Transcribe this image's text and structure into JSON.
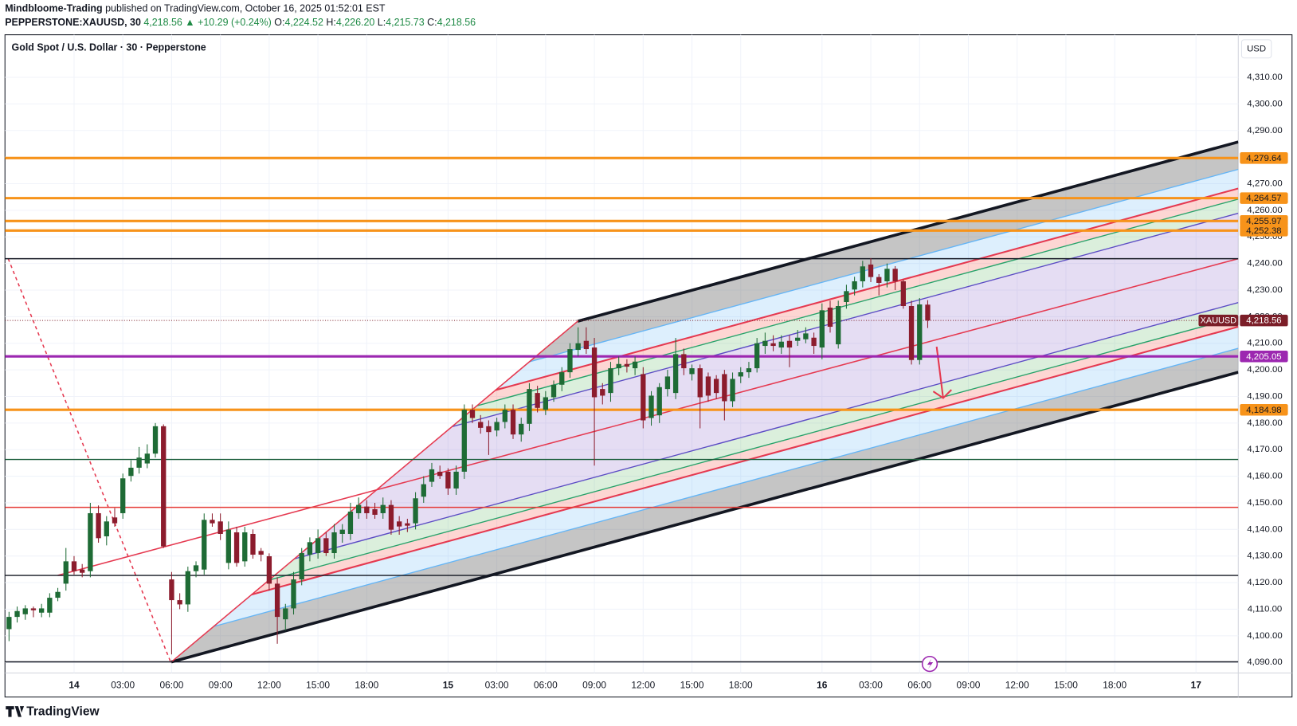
{
  "header": {
    "author": "Mindbloome-Trading",
    "published": "published on TradingView.com, October 16, 2025 01:52:01 EST",
    "symbol": "PEPPERSTONE:XAUUSD, 30",
    "last": "4,218.56",
    "change": "▲ +10.29 (+0.24%)",
    "ohlc": [
      {
        "key": "O:",
        "value": "4,224.52"
      },
      {
        "key": "H:",
        "value": "4,226.20"
      },
      {
        "key": "L:",
        "value": "4,215.73"
      },
      {
        "key": "C:",
        "value": "4,218.56"
      }
    ]
  },
  "logo": "TradingView",
  "chart_data": {
    "type": "candlestick",
    "title": "Gold Spot / U.S. Dollar · 30 · Pepperstone",
    "currency": "USD",
    "up_color": "#1e6b35",
    "down_color": "#8c1c2d",
    "candles": [
      [
        4102.5,
        4109,
        4098,
        4107.1
      ],
      [
        4107.1,
        4111,
        4105,
        4109.3
      ],
      [
        4108.1,
        4111.5,
        4106,
        4110.3
      ],
      [
        4110.3,
        4111,
        4107,
        4109.6
      ],
      [
        4108.7,
        4112,
        4107,
        4110.3
      ],
      [
        4108.7,
        4116,
        4107,
        4114.3
      ],
      [
        4114.3,
        4118,
        4113,
        4116.5
      ],
      [
        4119.6,
        4133,
        4117,
        4128.0
      ],
      [
        4128.0,
        4130,
        4123,
        4124.3
      ],
      [
        4124.9,
        4127,
        4122,
        4123.7
      ],
      [
        4124.3,
        4150,
        4122,
        4146.1
      ],
      [
        4146.1,
        4149,
        4135,
        4136.7
      ],
      [
        4137.4,
        4145,
        4134,
        4143.0
      ],
      [
        4144.5,
        4148,
        4141,
        4142.3
      ],
      [
        4146.1,
        4161,
        4144,
        4159.2
      ],
      [
        4160.1,
        4166,
        4158,
        4163.2
      ],
      [
        4163.2,
        4171,
        4161,
        4167.0
      ],
      [
        4164.8,
        4172,
        4163,
        4168.5
      ],
      [
        4168.5,
        4180,
        4167,
        4178.8
      ],
      [
        4178.8,
        4179.5,
        4133,
        4133.6
      ],
      [
        4121.2,
        4124,
        4093,
        4113.4
      ],
      [
        4113.4,
        4116,
        4110,
        4111.8
      ],
      [
        4111.8,
        4126,
        4109,
        4124.3
      ],
      [
        4124.3,
        4128,
        4122,
        4126.5
      ],
      [
        4124.9,
        4146,
        4123,
        4143.6
      ],
      [
        4143.6,
        4146,
        4141,
        4142.3
      ],
      [
        4143,
        4146,
        4136,
        4138.3
      ],
      [
        4127.4,
        4143,
        4125,
        4139.9
      ],
      [
        4138.9,
        4141,
        4126,
        4127.4
      ],
      [
        4128.0,
        4141,
        4126,
        4138.9
      ],
      [
        4138.3,
        4140,
        4129,
        4130.5
      ],
      [
        4131.9,
        4133,
        4128,
        4130.5
      ],
      [
        4129.9,
        4131,
        4117,
        4119.6
      ],
      [
        4119.6,
        4122,
        4097,
        4107.1
      ],
      [
        4106.2,
        4112,
        4102,
        4110.3
      ],
      [
        4110.3,
        4124,
        4108,
        4121.2
      ],
      [
        4121.2,
        4133,
        4119,
        4131.1
      ],
      [
        4130.5,
        4137,
        4128,
        4135.2
      ],
      [
        4131.1,
        4140,
        4129,
        4136.7
      ],
      [
        4136.7,
        4139,
        4130,
        4131.1
      ],
      [
        4131.1,
        4142,
        4129,
        4138.9
      ],
      [
        4138.3,
        4142,
        4135,
        4139.9
      ],
      [
        4138.3,
        4150,
        4136,
        4146.7
      ],
      [
        4146.1,
        4152,
        4144,
        4149.2
      ],
      [
        4148.6,
        4151,
        4144,
        4146.1
      ],
      [
        4147.6,
        4150,
        4144,
        4145.5
      ],
      [
        4146.1,
        4152,
        4144,
        4149.2
      ],
      [
        4149.2,
        4151,
        4138,
        4139.9
      ],
      [
        4143.0,
        4145,
        4138,
        4141.1
      ],
      [
        4142.3,
        4144,
        4139,
        4141.4
      ],
      [
        4142.3,
        4154,
        4140,
        4151.7
      ],
      [
        4152.3,
        4160,
        4150,
        4157.0
      ],
      [
        4157.9,
        4165,
        4156,
        4162.6
      ],
      [
        4161.7,
        4164,
        4159,
        4160.1
      ],
      [
        4161.7,
        4163,
        4153,
        4155.4
      ],
      [
        4155.4,
        4164,
        4153,
        4161.7
      ],
      [
        4161.7,
        4187,
        4159,
        4185.0
      ],
      [
        4185.0,
        4187,
        4180,
        4181.9
      ],
      [
        4180.4,
        4183,
        4176,
        4178.2
      ],
      [
        4178.8,
        4181,
        4168,
        4176.6
      ],
      [
        4177.2,
        4182,
        4175,
        4180.4
      ],
      [
        4180.4,
        4187,
        4178,
        4185.0
      ],
      [
        4185.0,
        4187,
        4174,
        4175.7
      ],
      [
        4175.7,
        4182,
        4173,
        4179.7
      ],
      [
        4179.7,
        4195,
        4177,
        4192.8
      ],
      [
        4191.3,
        4194,
        4184,
        4185.7
      ],
      [
        4185.0,
        4192,
        4183,
        4189.7
      ],
      [
        4189.7,
        4196,
        4188,
        4194.4
      ],
      [
        4194.4,
        4201,
        4192,
        4199.1
      ],
      [
        4199.1,
        4210,
        4197,
        4207.8
      ],
      [
        4207.5,
        4216,
        4205,
        4210.0
      ],
      [
        4210.9,
        4216,
        4206,
        4207.8
      ],
      [
        4208.4,
        4212,
        4164,
        4189.7
      ],
      [
        4192.8,
        4195,
        4187,
        4190.3
      ],
      [
        4191.3,
        4203,
        4188,
        4200.6
      ],
      [
        4200.6,
        4205,
        4198,
        4202.2
      ],
      [
        4202.2,
        4204,
        4199,
        4201.2
      ],
      [
        4200.6,
        4205,
        4198,
        4203.1
      ],
      [
        4198.4,
        4201,
        4178,
        4181.0
      ],
      [
        4181.9,
        4192,
        4179,
        4190.3
      ],
      [
        4182.9,
        4195,
        4180,
        4193.5
      ],
      [
        4192.8,
        4200,
        4190,
        4197.5
      ],
      [
        4191.3,
        4212,
        4189,
        4205.9
      ],
      [
        4205.9,
        4208,
        4198,
        4200.6
      ],
      [
        4198.4,
        4202,
        4196,
        4200.6
      ],
      [
        4200.6,
        4202,
        4178,
        4189.7
      ],
      [
        4197.5,
        4199,
        4188,
        4190.3
      ],
      [
        4196.6,
        4198,
        4189,
        4191.3
      ],
      [
        4198.4,
        4200,
        4181,
        4188.2
      ],
      [
        4188.2,
        4199,
        4186,
        4196.6
      ],
      [
        4197.5,
        4201,
        4195,
        4199.1
      ],
      [
        4199.1,
        4203,
        4197,
        4200.6
      ],
      [
        4200.6,
        4212,
        4199,
        4210.0
      ],
      [
        4209.0,
        4214,
        4206,
        4210.9
      ],
      [
        4210.0,
        4213,
        4207,
        4209.0
      ],
      [
        4208.4,
        4213,
        4206,
        4210.6
      ],
      [
        4210.9,
        4213,
        4201,
        4208.4
      ],
      [
        4210.9,
        4215,
        4209,
        4212.1
      ],
      [
        4211.5,
        4216,
        4210,
        4213.7
      ],
      [
        4212.1,
        4214,
        4206,
        4209.0
      ],
      [
        4208.4,
        4225,
        4204,
        4222.4
      ],
      [
        4223.4,
        4226,
        4214,
        4216.2
      ],
      [
        4209.6,
        4226,
        4208,
        4224.0
      ],
      [
        4225.5,
        4232,
        4223,
        4229.6
      ],
      [
        4230.2,
        4235,
        4228,
        4233.3
      ],
      [
        4233.3,
        4241,
        4231,
        4238.9
      ],
      [
        4239.6,
        4242,
        4233,
        4234.9
      ],
      [
        4234.9,
        4236,
        4228,
        4232.7
      ],
      [
        4233.3,
        4240,
        4231,
        4238.0
      ],
      [
        4238.0,
        4239,
        4230,
        4233.3
      ],
      [
        4233.3,
        4234,
        4223,
        4224.0
      ],
      [
        4224.0,
        4226,
        4202,
        4203.7
      ],
      [
        4203.7,
        4227,
        4202,
        4224.6
      ],
      [
        4224.52,
        4226.2,
        4215.73,
        4218.56
      ]
    ],
    "xlim": [
      -0.5,
      151.2
    ],
    "xticks": [
      {
        "value": 8,
        "label": "14"
      },
      {
        "value": 14,
        "label": "03:00"
      },
      {
        "value": 20,
        "label": "06:00"
      },
      {
        "value": 26,
        "label": "09:00"
      },
      {
        "value": 32,
        "label": "12:00"
      },
      {
        "value": 38,
        "label": "15:00"
      },
      {
        "value": 44,
        "label": "18:00"
      },
      {
        "value": 54,
        "label": "15"
      },
      {
        "value": 60,
        "label": "03:00"
      },
      {
        "value": 66,
        "label": "06:00"
      },
      {
        "value": 72,
        "label": "09:00"
      },
      {
        "value": 78,
        "label": "12:00"
      },
      {
        "value": 84,
        "label": "15:00"
      },
      {
        "value": 90,
        "label": "18:00"
      },
      {
        "value": 100,
        "label": "16"
      },
      {
        "value": 106,
        "label": "03:00"
      },
      {
        "value": 112,
        "label": "06:00"
      },
      {
        "value": 118,
        "label": "09:00"
      },
      {
        "value": 124,
        "label": "12:00"
      },
      {
        "value": 130,
        "label": "15:00"
      },
      {
        "value": 136,
        "label": "18:00"
      },
      {
        "value": 146,
        "label": "17"
      }
    ],
    "ylim": [
      4086,
      4326
    ],
    "yticks": [
      {
        "value": 4090,
        "label": "4,090.00"
      },
      {
        "value": 4100,
        "label": "4,100.00"
      },
      {
        "value": 4110,
        "label": "4,110.00"
      },
      {
        "value": 4120,
        "label": "4,120.00"
      },
      {
        "value": 4130,
        "label": "4,130.00"
      },
      {
        "value": 4140,
        "label": "4,140.00"
      },
      {
        "value": 4150,
        "label": "4,150.00"
      },
      {
        "value": 4160,
        "label": "4,160.00"
      },
      {
        "value": 4170,
        "label": "4,170.00"
      },
      {
        "value": 4180,
        "label": "4,180.00"
      },
      {
        "value": 4190,
        "label": "4,190.00"
      },
      {
        "value": 4200,
        "label": "4,200.00"
      },
      {
        "value": 4210,
        "label": "4,210.00"
      },
      {
        "value": 4220,
        "label": "4,220.00"
      },
      {
        "value": 4230,
        "label": "4,230.00"
      },
      {
        "value": 4240,
        "label": "4,240.00"
      },
      {
        "value": 4250,
        "label": "4,250.00"
      },
      {
        "value": 4260,
        "label": "4,260.00"
      },
      {
        "value": 4270,
        "label": "4,270.00"
      },
      {
        "value": 4280,
        "label": "4,280.00"
      },
      {
        "value": 4290,
        "label": "4,290.00"
      },
      {
        "value": 4300,
        "label": "4,300.00"
      },
      {
        "value": 4310,
        "label": "4,310.00"
      }
    ],
    "hlines": [
      {
        "value": 4241.8,
        "color": "#131722"
      },
      {
        "value": 4166.3,
        "color": "#1b5e3b"
      },
      {
        "value": 4148.3,
        "color": "#e53935"
      },
      {
        "value": 4122.7,
        "color": "#131722"
      },
      {
        "value": 4090.2,
        "color": "#131722"
      },
      {
        "value": 4279.64,
        "label": "4,279.64",
        "color": "#f7931a",
        "text_color": "#131722"
      },
      {
        "value": 4264.57,
        "label": "4,264.57",
        "color": "#f7931a",
        "text_color": "#131722"
      },
      {
        "value": 4255.97,
        "label": "4,255.97",
        "color": "#f7931a",
        "text_color": "#131722"
      },
      {
        "value": 4252.38,
        "label": "4,252.38",
        "color": "#f7931a",
        "text_color": "#131722"
      },
      {
        "value": 4184.98,
        "label": "4,184.98",
        "color": "#f7931a",
        "text_color": "#131722"
      },
      {
        "value": 4205.05,
        "label": "4,205.05",
        "color": "#9c27b0",
        "text_color": "#ffffff"
      }
    ],
    "last": {
      "name": "XAUUSD",
      "value": 4218.56,
      "label": "4,218.56",
      "color": "#7b1e28"
    },
    "channel": {
      "slope": 0.83,
      "fork": [
        [
          19.9,
          4090
        ],
        [
          70,
          4218.4
        ]
      ],
      "fork_color": "#e53950",
      "levels": [
        {
          "price": 4199.1,
          "color": "#131722",
          "fill": "rgba(110,110,110,0.4)"
        },
        {
          "price": 4208.1,
          "color": "#64b5f6",
          "fill": "rgba(100,181,246,0.22)"
        },
        {
          "price": 4216.2,
          "color": "#e53950",
          "fill": "rgba(244,67,54,0.22)"
        },
        {
          "price": 4219.9,
          "color": "#26a269",
          "fill": "rgba(76,175,80,0.2)"
        },
        {
          "price": 4225.3,
          "color": "#5b4bc4",
          "fill": "rgba(126,87,194,0.2)"
        },
        {
          "price": 4258.9,
          "color": "#5b4bc4",
          "fill": "rgba(76,175,80,0.2)"
        },
        {
          "price": 4264.2,
          "color": "#26a269",
          "fill": "rgba(244,67,54,0.22)"
        },
        {
          "price": 4268.2,
          "color": "#e53950",
          "fill": "rgba(100,181,246,0.22)"
        },
        {
          "price": 4275.4,
          "color": "#64b5f6",
          "fill": "rgba(110,110,110,0.4)"
        },
        {
          "price": 4285.7,
          "color": "#131722"
        }
      ]
    },
    "median": {
      "points": [
        [
          6,
          4122.7
        ],
        [
          151.2,
          4241.8
        ]
      ],
      "color": "#e53950"
    },
    "handle": {
      "points": [
        [
          -0.1,
          4241.8
        ],
        [
          19.9,
          4090
        ]
      ],
      "color": "#e53950"
    },
    "arrow": {
      "points": [
        [
          114.1,
          4208.7
        ],
        [
          114.9,
          4189.4
        ]
      ],
      "color": "#e53950"
    }
  }
}
